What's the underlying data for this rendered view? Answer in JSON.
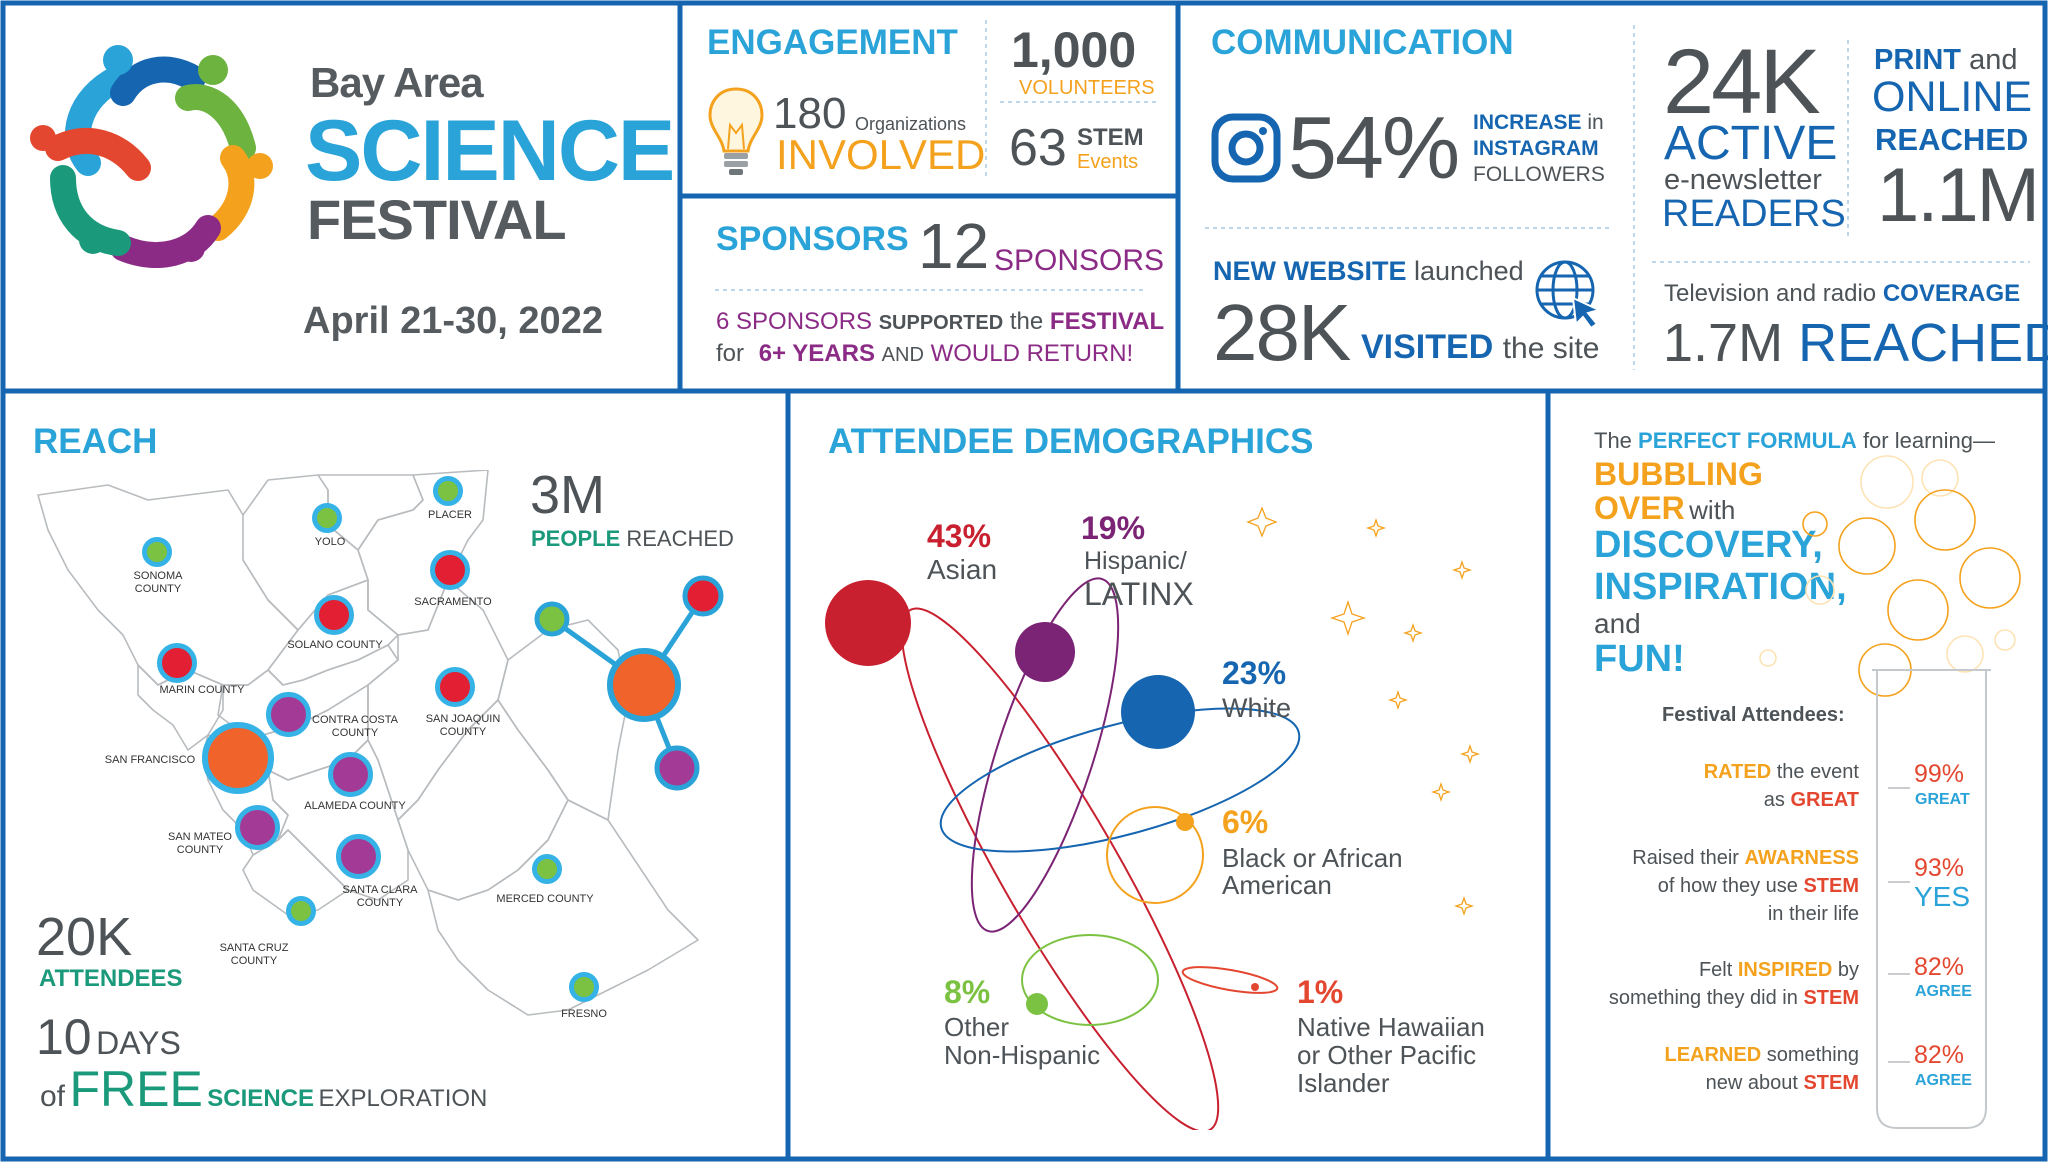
{
  "title": {
    "line1": "Bay Area",
    "line2": "SCIENCE",
    "line3": "FESTIVAL",
    "dates": "April 21-30, 2022"
  },
  "engagement": {
    "heading": "ENGAGEMENT",
    "orgs_number": "180",
    "orgs_label": "Organizations",
    "orgs_involved": "INVOLVED",
    "volunteers_number": "1,000",
    "volunteers_label": "VOLUNTEERS",
    "stem_number": "63",
    "stem_label": "STEM",
    "stem_events": "Events"
  },
  "sponsors": {
    "heading": "SPONSORS",
    "number": "12",
    "label": "SPONSORS",
    "line1_a": "6 SPONSORS",
    "line1_b": "SUPPORTED",
    "line1_c": "the",
    "line1_d": "FESTIVAL",
    "line2_a": "for",
    "line2_b": "6+ YEARS",
    "line2_c": "AND",
    "line2_d": "WOULD RETURN!"
  },
  "communication": {
    "heading": "COMMUNICATION",
    "insta_pct": "54%",
    "insta_l1a": "INCREASE",
    "insta_l1b": "in",
    "insta_l2": "INSTAGRAM",
    "insta_l3": "FOLLOWERS",
    "web_a": "NEW WEBSITE",
    "web_b": "launched",
    "web_num": "28K",
    "web_visited": "VISITED",
    "web_site": "the site",
    "enews_num": "24K",
    "enews_active": "ACTIVE",
    "enews_label": "e-newsletter",
    "enews_readers": "READERS",
    "print_a": "PRINT",
    "print_b": "and",
    "print_online": "ONLINE",
    "print_reached": "REACHED",
    "print_num": "1.1M",
    "tv_a": "Television and radio",
    "tv_b": "COVERAGE",
    "tv_num": "1.7M",
    "tv_reached": "REACHED"
  },
  "reach": {
    "heading": "REACH",
    "people_num": "3M",
    "people_a": "PEOPLE",
    "people_b": "REACHED",
    "attendees_num": "20K",
    "attendees_label": "ATTENDEES",
    "days_num": "10",
    "days_label": "DAYS",
    "free_of": "of",
    "free": "FREE",
    "free_science": "SCIENCE",
    "free_exploration": "EXPLORATION",
    "counties": [
      "SONOMA COUNTY",
      "YOLO",
      "PLACER",
      "SACRAMENTO",
      "SOLANO COUNTY",
      "MARIN COUNTY",
      "CONTRA COSTA COUNTY",
      "SAN JOAQUIN COUNTY",
      "SAN FRANCISCO",
      "ALAMEDA COUNTY",
      "SAN MATEO COUNTY",
      "SANTA CLARA COUNTY",
      "MERCED COUNTY",
      "SANTA CRUZ COUNTY",
      "FRESNO"
    ]
  },
  "demographics": {
    "heading": "ATTENDEE DEMOGRAPHICS",
    "items": [
      {
        "pct": "43%",
        "label": "Asian",
        "value": 43,
        "color": "#c8202f"
      },
      {
        "pct": "19%",
        "label1": "Hispanic/",
        "label2": "LATINX",
        "value": 19,
        "color": "#7b2374"
      },
      {
        "pct": "23%",
        "label": "White",
        "value": 23,
        "color": "#1565b0"
      },
      {
        "pct": "6%",
        "label1": "Black or African",
        "label2": "American",
        "value": 6,
        "color": "#f4a21d"
      },
      {
        "pct": "8%",
        "label1": "Other",
        "label2": "Non-Hispanic",
        "value": 8,
        "color": "#7cc242"
      },
      {
        "pct": "1%",
        "label1": "Native Hawaiian",
        "label2": "or Other Pacific",
        "label3": "Islander",
        "value": 1,
        "color": "#e4472f"
      }
    ]
  },
  "formula": {
    "intro_a": "The",
    "intro_b": "PERFECT FORMULA",
    "intro_c": "for learning—",
    "bubbling": "BUBBLING",
    "over": "OVER",
    "with": "with",
    "discovery": "DISCOVERY,",
    "inspiration": "INSPIRATION,",
    "and": "and",
    "fun": "FUN!",
    "attendees_label": "Festival Attendees:",
    "stats": [
      {
        "l1a": "RATED",
        "l1b": "the event",
        "l2a": "as",
        "l2b": "GREAT",
        "pct": "99%",
        "sub": "GREAT",
        "value": 99
      },
      {
        "l1a": "Raised their",
        "l1b": "AWARNESS",
        "l2a": "of how they use",
        "l2b": "STEM",
        "l3": "in their life",
        "pct": "93%",
        "sub": "YES",
        "value": 93
      },
      {
        "l1a": "Felt",
        "l1b": "INSPIRED",
        "l1c": "by",
        "l2a": "something they did in",
        "l2b": "STEM",
        "pct": "82%",
        "sub": "AGREE",
        "value": 82
      },
      {
        "l1a": "LEARNED",
        "l1b": "something",
        "l2a": "new about",
        "l2b": "STEM",
        "pct": "82%",
        "sub": "AGREE",
        "value": 82
      }
    ]
  },
  "colors": {
    "border": "#1565b0",
    "cyan": "#2aa3d8",
    "orange": "#f4a21d",
    "purple": "#8b2b86",
    "teal": "#1a9a7a"
  }
}
